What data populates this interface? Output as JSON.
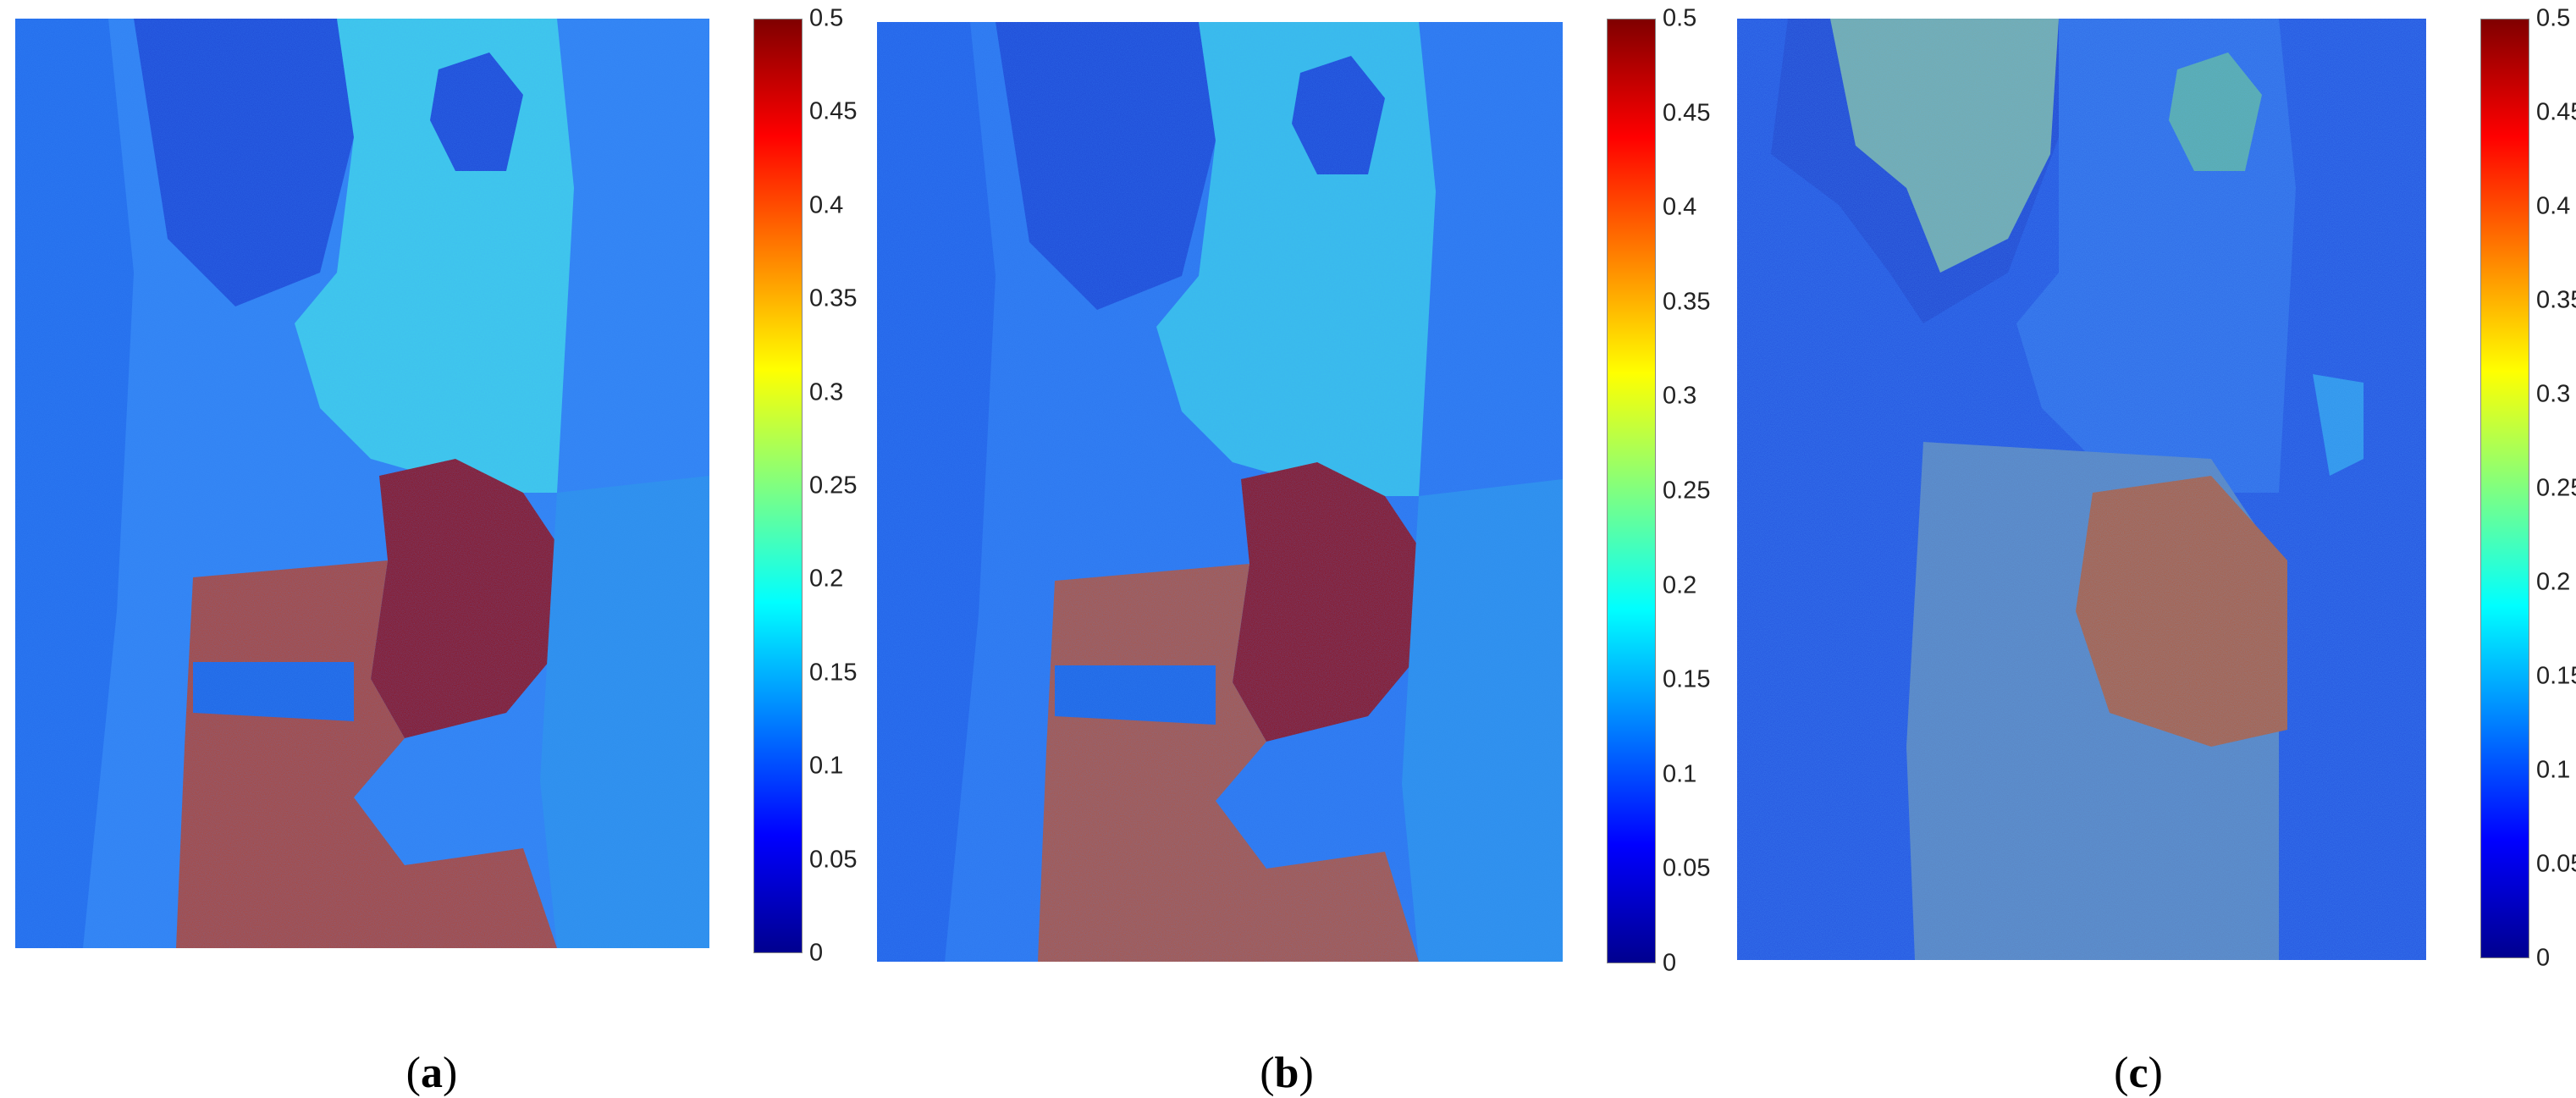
{
  "figure": {
    "panels": [
      {
        "id": "a",
        "caption_open": "(",
        "caption_letter": "a",
        "caption_close": ")"
      },
      {
        "id": "b",
        "caption_open": "(",
        "caption_letter": "b",
        "caption_close": ")"
      },
      {
        "id": "c",
        "caption_open": "(",
        "caption_letter": "c",
        "caption_close": ")"
      }
    ],
    "colorbar_ticks": [
      "0.5",
      "0.45",
      "0.4",
      "0.35",
      "0.3",
      "0.25",
      "0.2",
      "0.15",
      "0.1",
      "0.05",
      "0"
    ],
    "colorbar_range": [
      0,
      0.5
    ],
    "colormap": "jet",
    "colors": {
      "low": "#00008f",
      "mid": "#00ffff",
      "high": "#800000"
    }
  }
}
